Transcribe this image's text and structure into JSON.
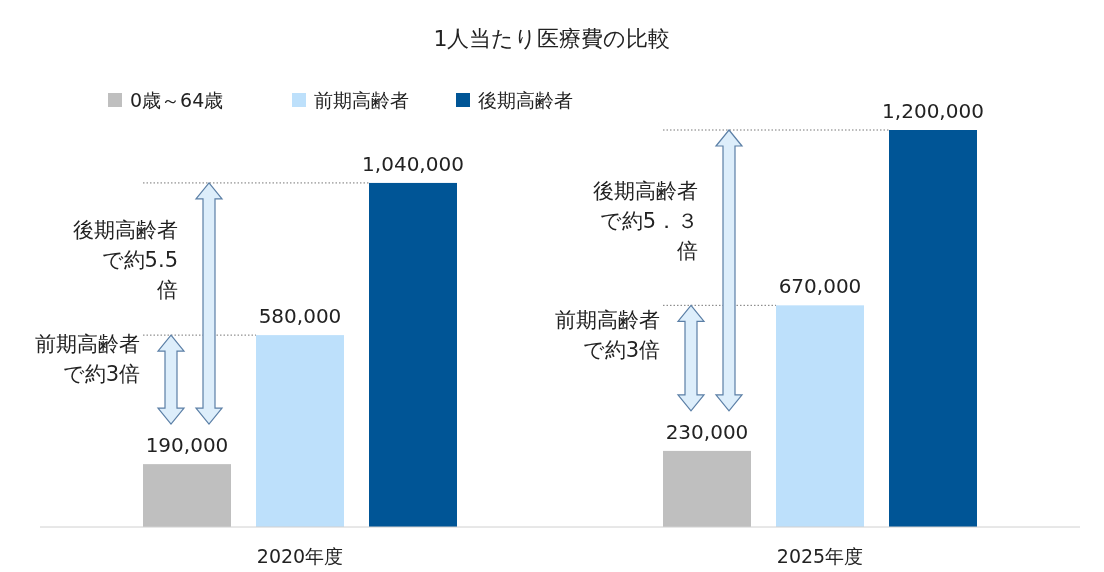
{
  "chart_data": {
    "type": "bar",
    "title": "1人当たり医療費の比較",
    "categories": [
      "2020年度",
      "2025年度"
    ],
    "series": [
      {
        "name": "0歳～64歳",
        "color": "#bfbfbf",
        "values": [
          190000,
          230000
        ],
        "value_labels": [
          "190,000",
          "230,000"
        ]
      },
      {
        "name": "前期高齢者",
        "color": "#bde0fb",
        "values": [
          580000,
          670000
        ],
        "value_labels": [
          "580,000",
          "670,000"
        ]
      },
      {
        "name": "後期高齢者",
        "color": "#005596",
        "values": [
          1040000,
          1200000
        ],
        "value_labels": [
          "1,040,000",
          "1,200,000"
        ]
      }
    ],
    "legend": "top left",
    "annotations": [
      "前期高齢者で約3倍",
      "後期高齢者で約5.5倍",
      "前期高齢者で約3倍",
      "後期高齢者で約5．３倍"
    ]
  }
}
